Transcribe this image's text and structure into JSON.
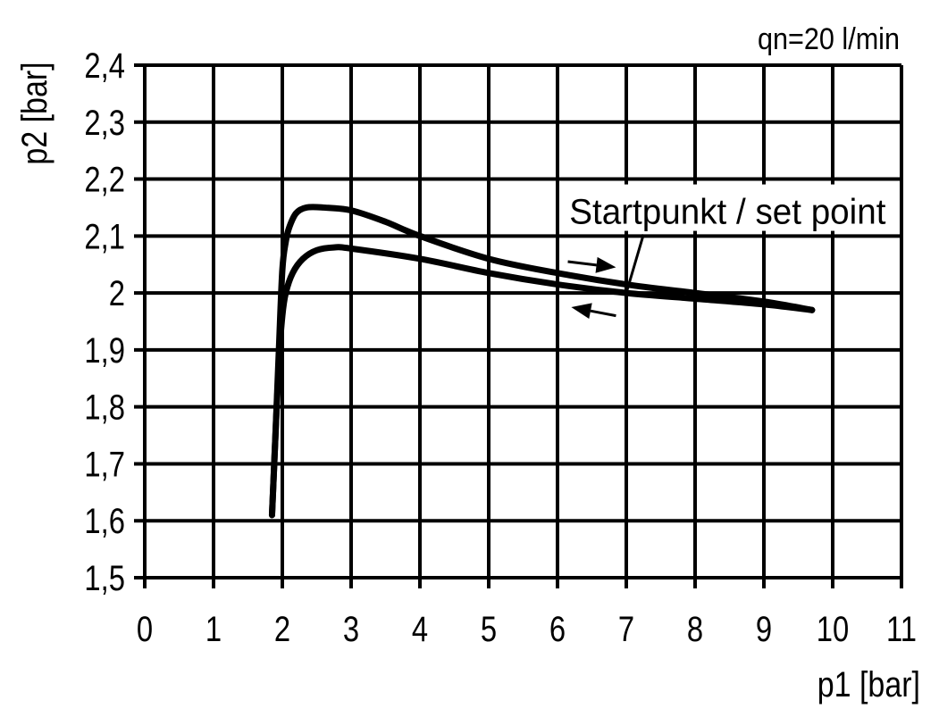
{
  "chart_data": {
    "type": "line",
    "annotation_top": "qn=20 l/min",
    "xlabel": "p1 [bar]",
    "ylabel": "p2 [bar]",
    "xlim": [
      0,
      11
    ],
    "ylim": [
      1.5,
      2.4
    ],
    "grid": true,
    "x_ticks": [
      "0",
      "1",
      "2",
      "3",
      "4",
      "5",
      "6",
      "7",
      "8",
      "9",
      "10",
      "11"
    ],
    "y_ticks": [
      "1,5",
      "1,6",
      "1,7",
      "1,8",
      "1,9",
      "2",
      "2,1",
      "2,2",
      "2,3",
      "2,4"
    ],
    "series": [
      {
        "x": [
          1.85,
          1.9,
          1.95,
          2.0,
          2.05,
          2.1,
          2.2,
          2.35,
          2.6,
          3.0,
          3.5,
          4.0,
          5.0,
          6.0,
          7.0,
          8.0,
          9.0,
          9.7
        ],
        "y": [
          1.61,
          1.75,
          1.9,
          2.04,
          2.09,
          2.115,
          2.14,
          2.15,
          2.15,
          2.145,
          2.125,
          2.1,
          2.06,
          2.035,
          2.015,
          2.0,
          1.985,
          1.97
        ]
      },
      {
        "x": [
          1.85,
          1.9,
          1.95,
          2.0,
          2.05,
          2.15,
          2.3,
          2.5,
          2.75,
          3.0,
          4.0,
          5.0,
          6.0,
          7.0,
          8.0,
          9.0,
          9.7
        ],
        "y": [
          1.61,
          1.75,
          1.88,
          1.96,
          2.0,
          2.035,
          2.06,
          2.075,
          2.08,
          2.078,
          2.06,
          2.035,
          2.015,
          2.0,
          1.99,
          1.98,
          1.97
        ]
      }
    ],
    "callout": {
      "text": "Startpunkt / set point",
      "x": 7.0,
      "y": 2.0
    },
    "arrows": [
      {
        "direction": "right",
        "from": [
          6.15,
          2.055
        ],
        "to": [
          6.85,
          2.045
        ]
      },
      {
        "direction": "left",
        "from": [
          6.85,
          1.96
        ],
        "to": [
          6.2,
          1.975
        ]
      }
    ],
    "line_color": "#000000"
  }
}
